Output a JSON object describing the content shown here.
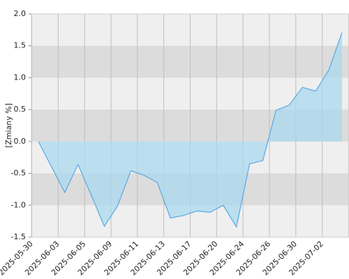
{
  "chart_data": {
    "type": "area",
    "y_label": "[Zmiany %]",
    "categories": [
      "2025-05-30",
      null,
      "2025-06-03",
      null,
      "2025-06-05",
      null,
      "2025-06-09",
      null,
      "2025-06-11",
      null,
      "2025-06-13",
      null,
      "2025-06-17",
      null,
      "2025-06-20",
      null,
      "2025-06-24",
      null,
      "2025-06-26",
      null,
      "2025-06-30",
      null,
      "2025-07-02",
      null
    ],
    "values": [
      0.0,
      -0.4,
      -0.8,
      -0.36,
      -0.84,
      -1.33,
      -1.01,
      -0.46,
      -0.53,
      -0.64,
      -1.2,
      -1.16,
      -1.09,
      -1.11,
      -1.0,
      -1.34,
      -0.35,
      -0.3,
      0.49,
      0.57,
      0.85,
      0.79,
      1.12,
      1.71
    ],
    "color": "#5ba7e3",
    "fill_color": "#a9d9ef",
    "ylim": [
      -1.5,
      2.0
    ],
    "yticks": [
      {
        "value": -1.5,
        "label": "-1.5"
      },
      {
        "value": -1.0,
        "label": "-1.0"
      },
      -0.5,
      {
        "value": 0.0,
        "label": "0.0"
      },
      0.5,
      {
        "value": 1.0,
        "label": "1.0"
      },
      1.5,
      {
        "value": 2.0,
        "label": "2.0"
      }
    ],
    "grid": true
  }
}
